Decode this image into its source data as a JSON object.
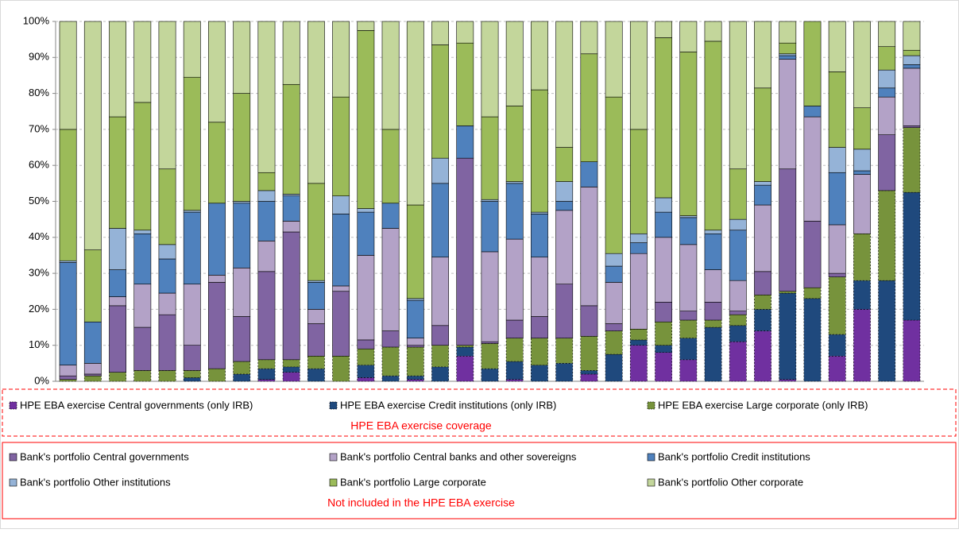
{
  "chart_data": {
    "type": "stacked_bar_100",
    "ylim": [
      0,
      100
    ],
    "yticks": [
      {
        "value": 0,
        "label": "0%"
      },
      {
        "value": 10,
        "label": "10%"
      },
      {
        "value": 20,
        "label": "20%"
      },
      {
        "value": 30,
        "label": "30%"
      },
      {
        "value": 40,
        "label": "40%"
      },
      {
        "value": 50,
        "label": "50%"
      },
      {
        "value": 60,
        "label": "60%"
      },
      {
        "value": 70,
        "label": "70%"
      },
      {
        "value": 80,
        "label": "80%"
      },
      {
        "value": 90,
        "label": "90%"
      },
      {
        "value": 100,
        "label": "100%"
      }
    ],
    "grid": true,
    "legend_notes": [
      "HPE EBA exercise coverage",
      "Not included in the HPE EBA exercise"
    ],
    "series": [
      {
        "name": "HPE EBA exercise Central governments (only IRB)",
        "color": "#7030a0",
        "border": "dashed",
        "values": [
          0,
          0,
          0,
          0,
          0,
          0,
          0,
          0,
          0.5,
          2.5,
          0,
          0,
          1,
          0,
          0.5,
          0,
          7,
          0,
          0.5,
          0,
          0,
          2,
          0,
          10,
          8,
          6,
          0,
          11,
          14,
          0.5,
          0,
          7,
          20,
          0,
          17
        ]
      },
      {
        "name": "HPE EBA exercise Credit institutions (only IRB)",
        "color": "#1f497d",
        "border": "dashed",
        "values": [
          0,
          0,
          0,
          0,
          0,
          1,
          0,
          2,
          3,
          1.5,
          3.5,
          0,
          3.5,
          1.5,
          1,
          4,
          2.5,
          3.5,
          5,
          4.5,
          5,
          1,
          7.5,
          1.5,
          2,
          6,
          15,
          4.5,
          6,
          24,
          23,
          6,
          8,
          28,
          35.5
        ]
      },
      {
        "name": "HPE EBA exercise Large corporate (only IRB)",
        "color": "#77933c",
        "border": "dashed",
        "values": [
          0.5,
          1.5,
          2.5,
          3,
          3,
          2,
          3.5,
          3.5,
          2.5,
          2,
          3.5,
          7,
          4.5,
          8,
          8,
          6,
          0.5,
          7,
          6.5,
          7.5,
          7,
          9.5,
          6.5,
          3,
          6.5,
          5,
          2,
          3,
          4,
          0.5,
          3,
          16,
          13,
          25,
          18
        ]
      },
      {
        "name": "Bank's portfolio Central governments",
        "color": "#8064a2",
        "border": "solid",
        "values": [
          1,
          0.5,
          18.5,
          12,
          15.5,
          7,
          24,
          12.5,
          24.5,
          35.5,
          9,
          18,
          2.5,
          4.5,
          0.5,
          5.5,
          52,
          0.5,
          5,
          6,
          15,
          8.5,
          2,
          0,
          5.5,
          2.5,
          5,
          1,
          6.5,
          34,
          18.5,
          1,
          0,
          15.5,
          0.5
        ]
      },
      {
        "name": "Bank's portfolio Central banks and other sovereigns",
        "color": "#b3a2c7",
        "border": "solid",
        "values": [
          3,
          3,
          2.5,
          12,
          6,
          17,
          2,
          13.5,
          8.5,
          3,
          4,
          1.5,
          23.5,
          28.5,
          2,
          19,
          0,
          25,
          22.5,
          16.5,
          20.5,
          33,
          11.5,
          21,
          18,
          18.5,
          9,
          8.5,
          18.5,
          30.5,
          29,
          13.5,
          16.5,
          10.5,
          16
        ]
      },
      {
        "name": "Bank's portfolio Credit institutions",
        "color": "#4f81bd",
        "border": "solid",
        "values": [
          28.5,
          11.5,
          7.5,
          14,
          9.5,
          20,
          20,
          18,
          11,
          7,
          7.5,
          20,
          12,
          7,
          10.5,
          20.5,
          9,
          14,
          15.5,
          12,
          2.5,
          7,
          4.5,
          3,
          7,
          7.5,
          10,
          14,
          5.5,
          1,
          3,
          14.5,
          1,
          2.5,
          1
        ]
      },
      {
        "name": "Bank's portfolio Other institutions",
        "color": "#95b3d7",
        "border": "solid",
        "values": [
          0.5,
          0,
          11.5,
          1,
          4,
          0.5,
          0,
          0.5,
          3,
          0.5,
          0.5,
          5,
          1,
          0,
          0.5,
          7,
          0,
          0.5,
          0.5,
          0.5,
          5.5,
          0,
          3.5,
          2.5,
          4,
          0.5,
          1,
          3,
          1,
          0.5,
          0,
          7,
          6,
          5,
          2.5
        ]
      },
      {
        "name": "Bank's portfolio Large corporate",
        "color": "#9bbb59",
        "border": "solid",
        "values": [
          36.5,
          20,
          31,
          35.5,
          21,
          37,
          22.5,
          30,
          5,
          30.5,
          27,
          27.5,
          49.5,
          20.5,
          26,
          31.5,
          23,
          23,
          21,
          34,
          9.5,
          30,
          43.5,
          29,
          44.5,
          45.5,
          52.5,
          14,
          26,
          3,
          23.5,
          21,
          11.5,
          6.5,
          1.5
        ]
      },
      {
        "name": "Bank's portfolio Other corporate",
        "color": "#c3d69b",
        "border": "solid",
        "values": [
          30,
          63.5,
          26.5,
          22.5,
          41,
          15.5,
          28,
          20,
          42,
          17.5,
          45,
          21,
          2.5,
          30,
          51,
          6.5,
          6,
          26.5,
          23.5,
          19,
          35,
          9,
          21,
          30,
          4.5,
          8.5,
          5.5,
          41,
          18.5,
          6,
          0,
          14,
          24,
          7,
          8
        ]
      }
    ]
  }
}
